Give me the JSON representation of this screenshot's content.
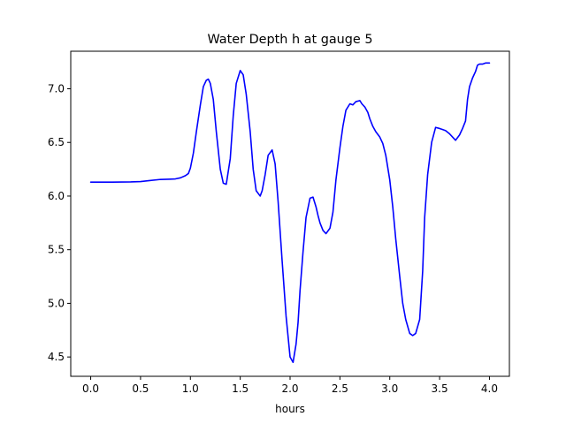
{
  "chart_data": {
    "type": "line",
    "title": "Water Depth h at gauge 5",
    "xlabel": "hours",
    "ylabel": "",
    "xlim": [
      -0.2,
      4.2
    ],
    "ylim": [
      4.32,
      7.35
    ],
    "grid": false,
    "x_ticks": [
      0.0,
      0.5,
      1.0,
      1.5,
      2.0,
      2.5,
      3.0,
      3.5,
      4.0
    ],
    "x_tick_labels": [
      "0.0",
      "0.5",
      "1.0",
      "1.5",
      "2.0",
      "2.5",
      "3.0",
      "3.5",
      "4.0"
    ],
    "y_ticks": [
      4.5,
      5.0,
      5.5,
      6.0,
      6.5,
      7.0
    ],
    "y_tick_labels": [
      "4.5",
      "5.0",
      "5.5",
      "6.0",
      "6.5",
      "7.0"
    ],
    "colors": {
      "series": "#0000ff",
      "axes": "#000000",
      "background": "#ffffff"
    },
    "series": [
      {
        "x": [
          0.0,
          0.2,
          0.4,
          0.5,
          0.6,
          0.7,
          0.8,
          0.85,
          0.9,
          0.95,
          0.98,
          1.0,
          1.03,
          1.06,
          1.1,
          1.13,
          1.16,
          1.18,
          1.2,
          1.23,
          1.26,
          1.3,
          1.33,
          1.36,
          1.4,
          1.43,
          1.46,
          1.5,
          1.53,
          1.56,
          1.6,
          1.63,
          1.66,
          1.7,
          1.72,
          1.75,
          1.78,
          1.82,
          1.85,
          1.88,
          1.92,
          1.96,
          2.0,
          2.03,
          2.06,
          2.08,
          2.1,
          2.13,
          2.16,
          2.2,
          2.23,
          2.26,
          2.28,
          2.3,
          2.33,
          2.36,
          2.4,
          2.43,
          2.46,
          2.5,
          2.53,
          2.56,
          2.6,
          2.63,
          2.66,
          2.7,
          2.72,
          2.75,
          2.78,
          2.8,
          2.83,
          2.86,
          2.9,
          2.93,
          2.96,
          3.0,
          3.03,
          3.06,
          3.1,
          3.13,
          3.16,
          3.2,
          3.23,
          3.26,
          3.3,
          3.33,
          3.35,
          3.38,
          3.42,
          3.46,
          3.5,
          3.53,
          3.56,
          3.6,
          3.63,
          3.66,
          3.7,
          3.73,
          3.76,
          3.78,
          3.8,
          3.83,
          3.86,
          3.88,
          3.9,
          3.93,
          3.96,
          3.98,
          4.0
        ],
        "y": [
          6.13,
          6.13,
          6.132,
          6.135,
          6.145,
          6.155,
          6.158,
          6.16,
          6.17,
          6.19,
          6.21,
          6.26,
          6.4,
          6.6,
          6.85,
          7.02,
          7.08,
          7.09,
          7.05,
          6.9,
          6.6,
          6.25,
          6.12,
          6.11,
          6.35,
          6.75,
          7.05,
          7.17,
          7.13,
          6.95,
          6.6,
          6.25,
          6.05,
          6.0,
          6.05,
          6.2,
          6.38,
          6.43,
          6.3,
          5.95,
          5.4,
          4.88,
          4.5,
          4.45,
          4.62,
          4.82,
          5.12,
          5.48,
          5.8,
          5.98,
          5.99,
          5.9,
          5.82,
          5.75,
          5.68,
          5.65,
          5.7,
          5.85,
          6.15,
          6.45,
          6.65,
          6.8,
          6.86,
          6.85,
          6.88,
          6.89,
          6.86,
          6.83,
          6.78,
          6.72,
          6.65,
          6.6,
          6.55,
          6.49,
          6.38,
          6.15,
          5.9,
          5.6,
          5.25,
          5.0,
          4.85,
          4.72,
          4.7,
          4.72,
          4.85,
          5.3,
          5.8,
          6.2,
          6.5,
          6.64,
          6.63,
          6.62,
          6.61,
          6.58,
          6.55,
          6.52,
          6.57,
          6.63,
          6.7,
          6.9,
          7.02,
          7.1,
          7.16,
          7.22,
          7.23,
          7.23,
          7.24,
          7.24,
          7.24
        ]
      }
    ]
  }
}
